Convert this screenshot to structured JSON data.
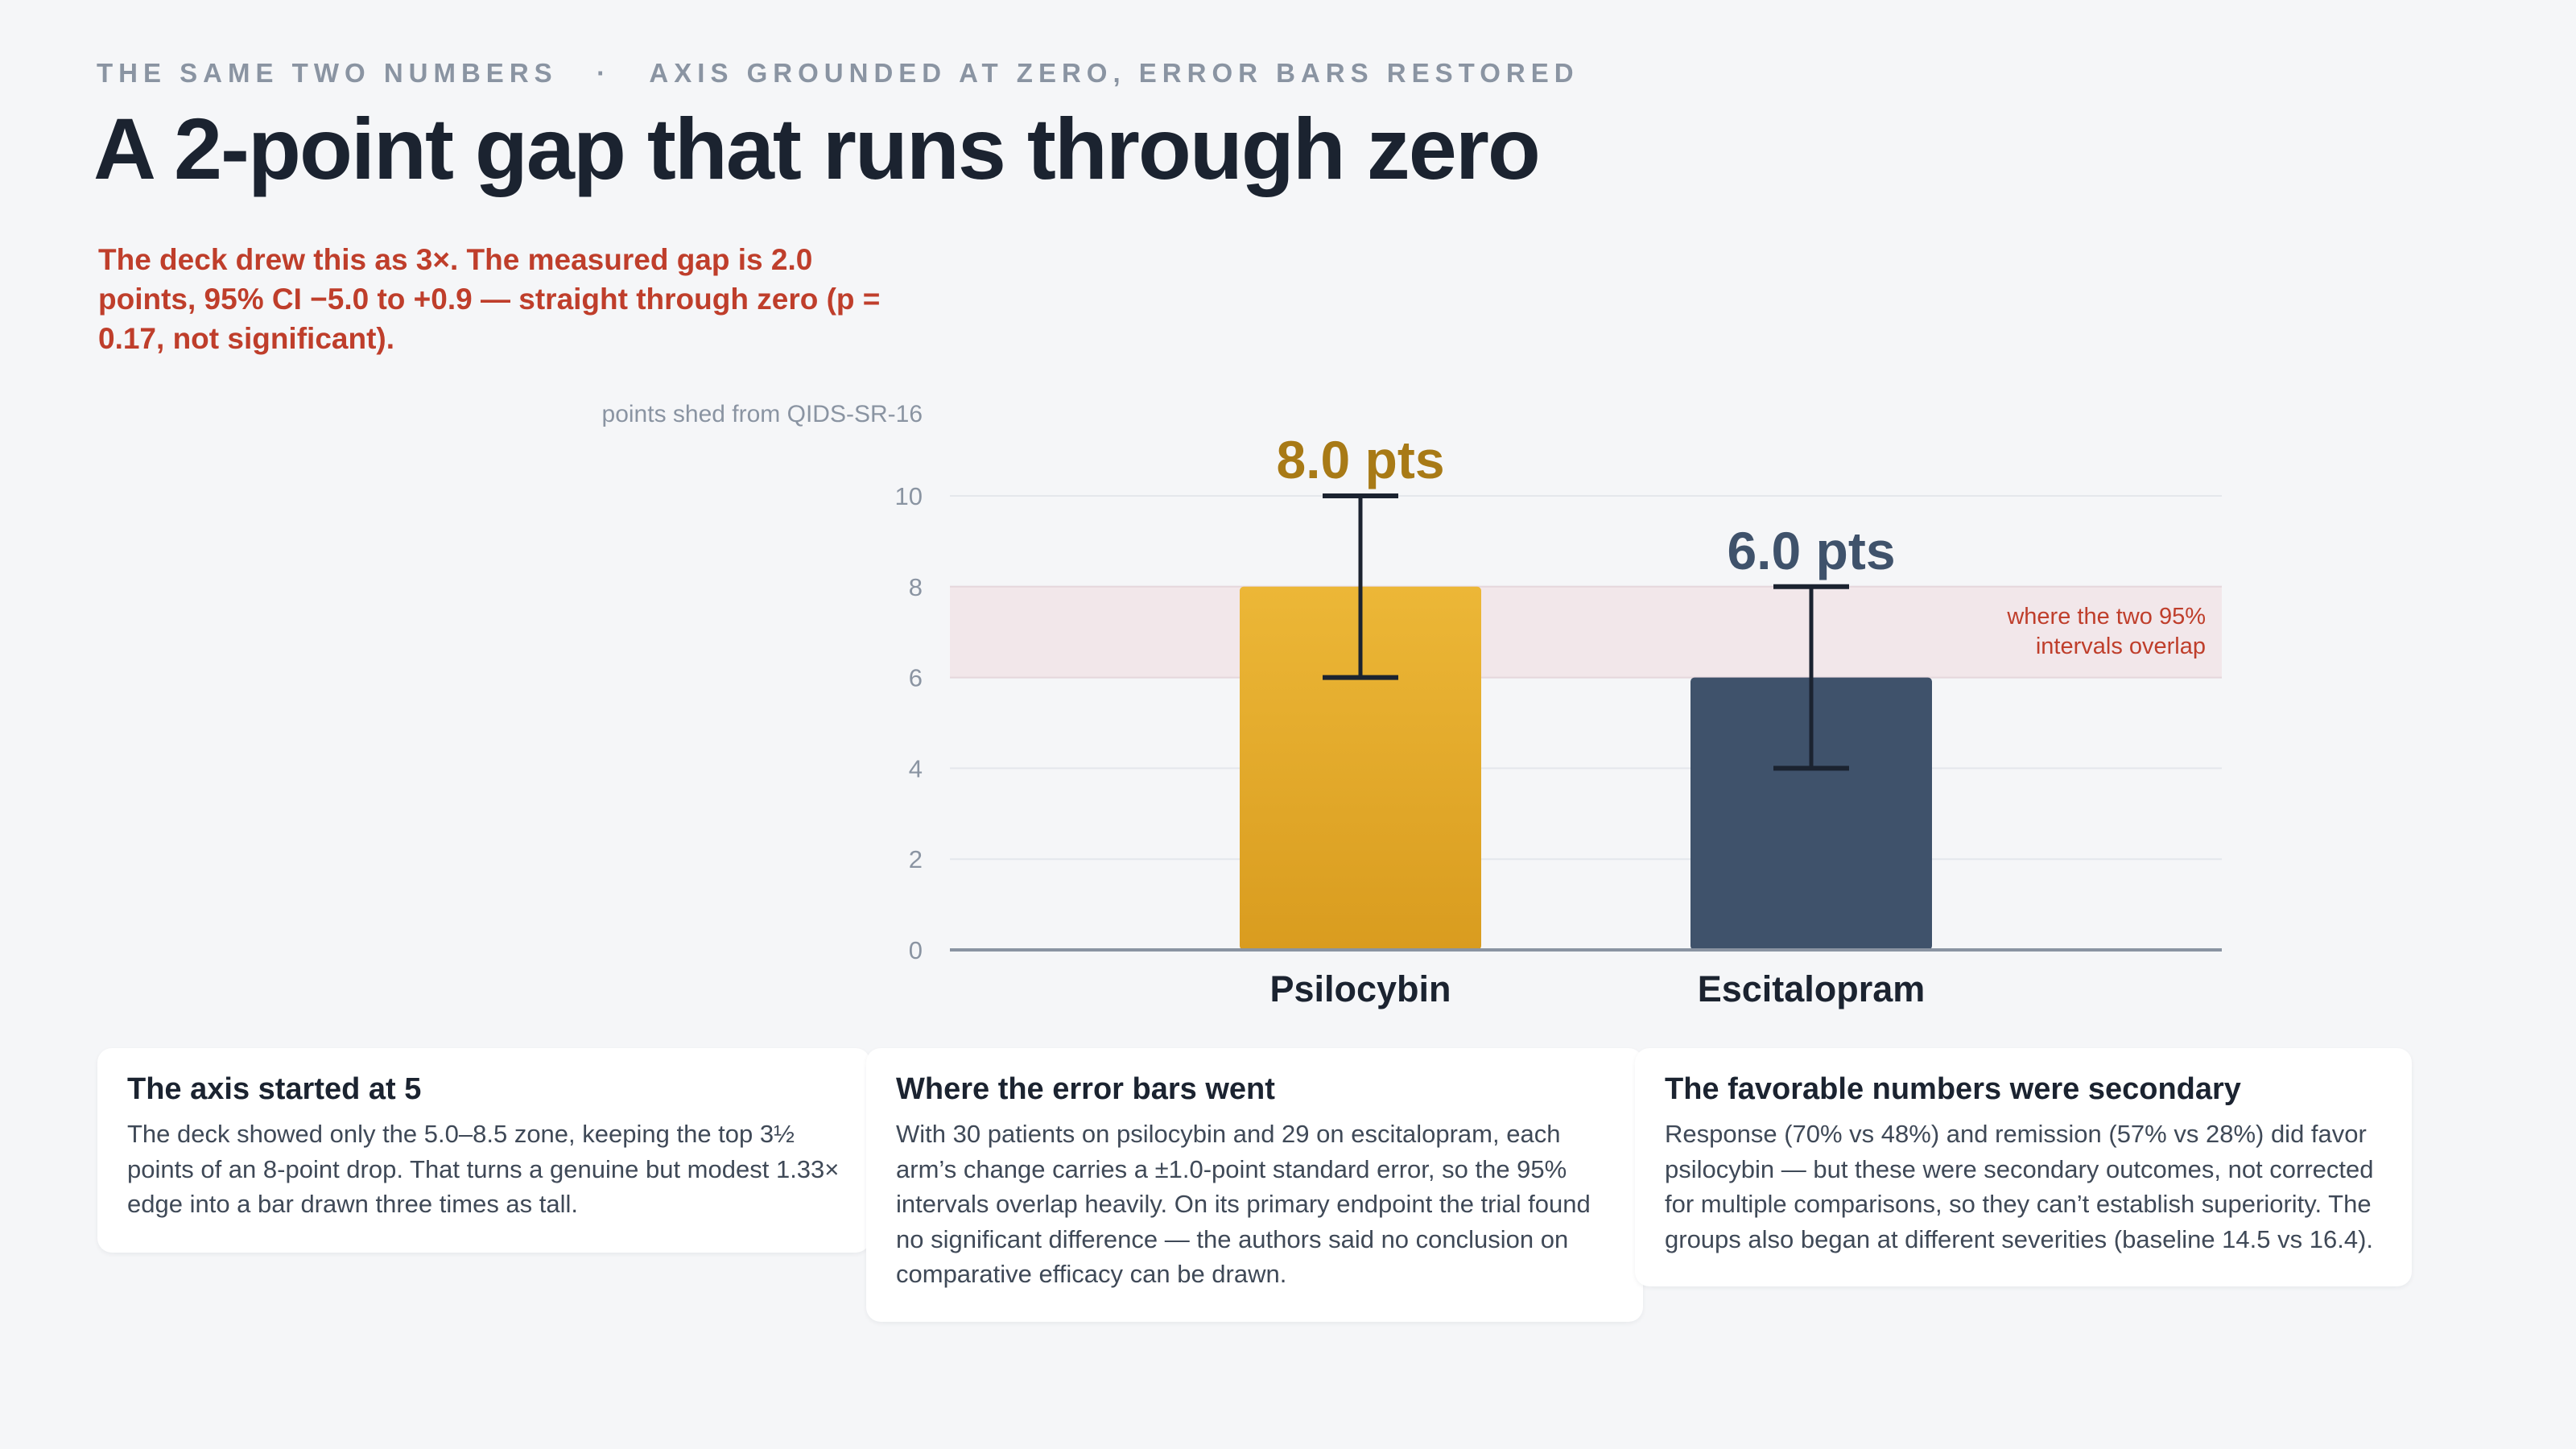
{
  "header": {
    "kicker": "THE SAME TWO NUMBERS   ·   AXIS GROUNDED AT ZERO, ERROR BARS RESTORED",
    "title": "A 2-point gap that runs through zero",
    "lede": "The deck drew this as 3×. The measured gap is 2.0 points, 95% CI −5.0 to +0.9 — straight through zero (p = 0.17, not significant)."
  },
  "chart_data": {
    "type": "bar",
    "ylabel": "points shed from QIDS-SR-16",
    "ylim": [
      0,
      10
    ],
    "yticks": [
      "0",
      "2",
      "4",
      "6",
      "8",
      "10"
    ],
    "categories": [
      "Psilocybin",
      "Escitalopram"
    ],
    "values": [
      8.0,
      6.0
    ],
    "error_low": [
      6.0,
      4.0
    ],
    "error_high": [
      10.0,
      8.0
    ],
    "value_labels": [
      "8.0 pts",
      "6.0 pts"
    ],
    "overlap_band": [
      6,
      8
    ],
    "overlap_label_lines": [
      "where the two 95%",
      "intervals overlap"
    ],
    "colors": {
      "psilocybin": "#e3a92a",
      "escitalopram": "#3f526b",
      "psilocybin_label": "#a87a16",
      "escitalopram_label": "#3f526b",
      "band": "#f2e7ea",
      "band_text": "#bf3e2b",
      "axis": "#8a94a2",
      "grid": "#e4e7ec",
      "error": "#1b2330"
    }
  },
  "cards": [
    {
      "title": "The axis started at 5",
      "body": "The deck showed only the 5.0–8.5 zone, keeping the top 3½ points of an 8-point drop. That turns a genuine but modest 1.33× edge into a bar drawn three times as tall."
    },
    {
      "title": "Where the error bars went",
      "body": "With 30 patients on psilocybin and 29 on escitalopram, each arm’s change carries a ±1.0-point standard error, so the 95% intervals overlap heavily. On its primary endpoint the trial found no significant difference — the authors said no conclusion on comparative efficacy can be drawn."
    },
    {
      "title": "The favorable numbers were secondary",
      "body": "Response (70% vs 48%) and remission (57% vs 28%) did favor psilocybin — but these were secondary outcomes, not corrected for multiple comparisons, so they can’t establish superiority. The groups also began at different severities (baseline 14.5 vs 16.4)."
    }
  ]
}
